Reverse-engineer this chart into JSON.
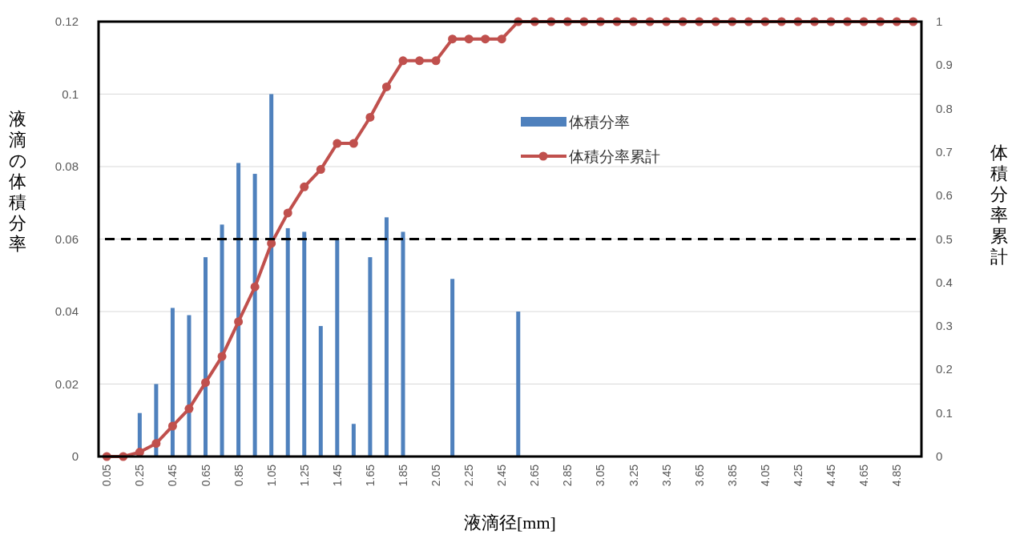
{
  "chart_data": {
    "type": "bar",
    "categories": [
      "0.05",
      null,
      "0.25",
      null,
      "0.45",
      null,
      "0.65",
      null,
      "0.85",
      null,
      "1.05",
      null,
      "1.25",
      null,
      "1.45",
      null,
      "1.65",
      null,
      "1.85",
      null,
      "2.05",
      null,
      "2.25",
      null,
      "2.45",
      null,
      "2.65",
      null,
      "2.85",
      null,
      "3.05",
      null,
      "3.25",
      null,
      "3.45",
      null,
      "3.65",
      null,
      "3.85",
      null,
      "4.05",
      null,
      "4.25",
      null,
      "4.45",
      null,
      "4.65",
      null,
      "4.85",
      null
    ],
    "series": [
      {
        "name": "体積分率",
        "color": "#4f81bd",
        "values": [
          0,
          0,
          0.012,
          0.02,
          0.041,
          0.039,
          0.055,
          0.064,
          0.081,
          0.078,
          0.1,
          0.063,
          0.062,
          0.036,
          0.06,
          0.009,
          0.055,
          0.066,
          0.062,
          0,
          0,
          0.049,
          0,
          0,
          0,
          0.04,
          0,
          0,
          0,
          0,
          0,
          0,
          0,
          0,
          0,
          0,
          0,
          0,
          0,
          0,
          0,
          0,
          0,
          0,
          0,
          0,
          0,
          0,
          0,
          0
        ]
      },
      {
        "name": "体積分率累計",
        "type": "line",
        "axis": "y2",
        "color": "#c0504d",
        "values": [
          0,
          0,
          0.01,
          0.03,
          0.07,
          0.11,
          0.17,
          0.23,
          0.31,
          0.39,
          0.49,
          0.56,
          0.62,
          0.66,
          0.72,
          0.72,
          0.78,
          0.85,
          0.91,
          0.91,
          0.91,
          0.96,
          0.96,
          0.96,
          0.96,
          1,
          1,
          1,
          1,
          1,
          1,
          1,
          1,
          1,
          1,
          1,
          1,
          1,
          1,
          1,
          1,
          1,
          1,
          1,
          1,
          1,
          1,
          1,
          1,
          1
        ]
      }
    ],
    "xlabel": "液滴径[mm]",
    "ylabel": "液滴の体積分率",
    "y2label": "体積分率累計",
    "ylim": [
      0,
      0.12
    ],
    "yticks": [
      0,
      0.02,
      0.04,
      0.06,
      0.08,
      0.1,
      0.12
    ],
    "y2lim": [
      0,
      1
    ],
    "y2ticks": [
      0,
      0.1,
      0.2,
      0.3,
      0.4,
      0.5,
      0.6,
      0.7,
      0.8,
      0.9,
      1
    ],
    "ref_lines": [
      {
        "axis": "y",
        "value": 0.06,
        "color": "#000000",
        "line_style": "dashed"
      }
    ],
    "grid": "y",
    "legend": "top",
    "marker": "circle",
    "line_style": "solid"
  }
}
